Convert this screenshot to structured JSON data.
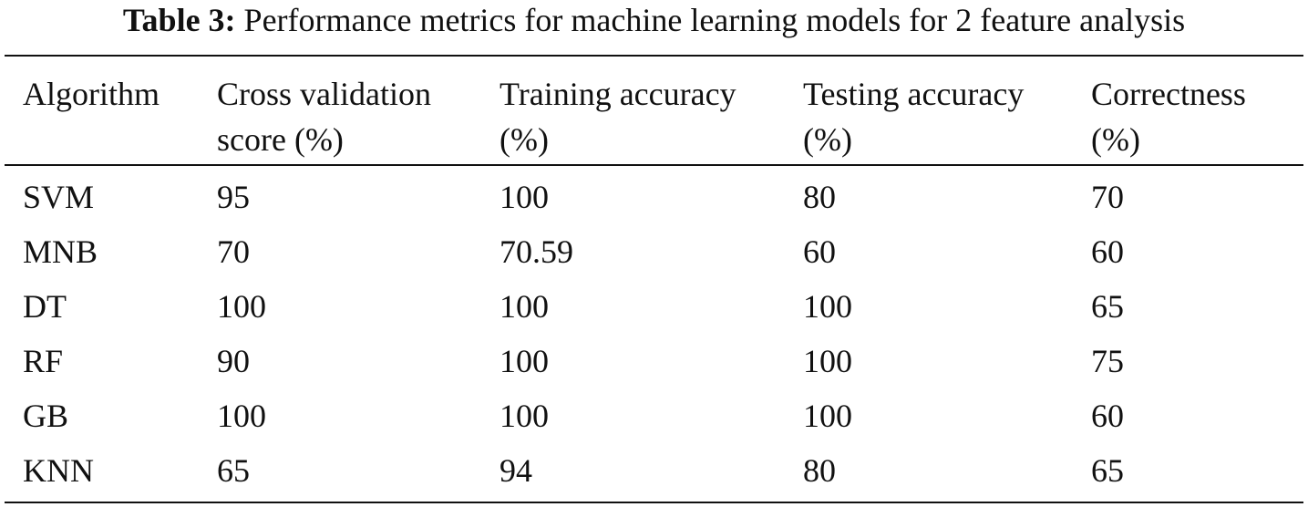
{
  "caption": {
    "label": "Table 3:",
    "text": "Performance metrics for machine learning models for 2 feature analysis"
  },
  "table": {
    "headers": [
      [
        "Algorithm"
      ],
      [
        "Cross validation",
        "score (%)"
      ],
      [
        "Training accuracy",
        "(%)"
      ],
      [
        "Testing accuracy",
        "(%)"
      ],
      [
        "Correctness",
        "(%)"
      ]
    ],
    "rows": [
      [
        "SVM",
        "95",
        "100",
        "80",
        "70"
      ],
      [
        "MNB",
        "70",
        "70.59",
        "60",
        "60"
      ],
      [
        "DT",
        "100",
        "100",
        "100",
        "65"
      ],
      [
        "RF",
        "90",
        "100",
        "100",
        "75"
      ],
      [
        "GB",
        "100",
        "100",
        "100",
        "60"
      ],
      [
        "KNN",
        "65",
        "94",
        "80",
        "65"
      ]
    ]
  }
}
